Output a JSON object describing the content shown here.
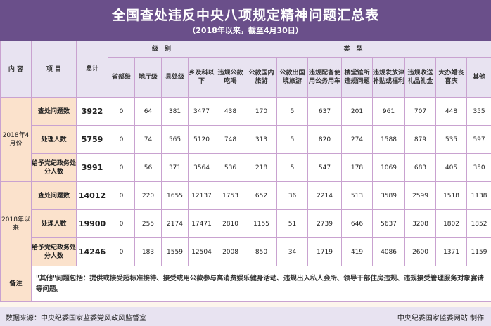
{
  "title": "全国查处违反中央八项规定精神问题汇总表",
  "subtitle": "（2018年以来，截至4月30日）",
  "headers": {
    "content": "内 容",
    "item": "项 目",
    "total": "总计",
    "level": "级　别",
    "type": "类　型",
    "levels": [
      "省部级",
      "地厅级",
      "县处级",
      "乡及科以下"
    ],
    "types": [
      "违规公款吃喝",
      "公款国内旅游",
      "公款出国境旅游",
      "违规配备使用公务用车",
      "楼堂馆所违规问题",
      "违规发放津补贴或福利",
      "违规收送礼品礼金",
      "大办婚丧喜庆",
      "其他"
    ]
  },
  "sections": [
    {
      "name": "2018年4月份",
      "rows": [
        {
          "item": "查处问题数",
          "total": "3922",
          "values": [
            "0",
            "64",
            "381",
            "3477",
            "438",
            "170",
            "5",
            "637",
            "201",
            "961",
            "707",
            "448",
            "355"
          ]
        },
        {
          "item": "处理人数",
          "total": "5759",
          "values": [
            "0",
            "74",
            "565",
            "5120",
            "748",
            "313",
            "5",
            "820",
            "274",
            "1588",
            "879",
            "535",
            "597"
          ]
        },
        {
          "item": "给予党纪政务处分人数",
          "total": "3991",
          "values": [
            "0",
            "56",
            "371",
            "3564",
            "536",
            "218",
            "5",
            "547",
            "178",
            "1069",
            "683",
            "405",
            "350"
          ]
        }
      ]
    },
    {
      "name": "2018年以来",
      "rows": [
        {
          "item": "查处问题数",
          "total": "14012",
          "values": [
            "0",
            "220",
            "1655",
            "12137",
            "1753",
            "652",
            "36",
            "2214",
            "513",
            "3589",
            "2599",
            "1518",
            "1138"
          ]
        },
        {
          "item": "处理人数",
          "total": "19900",
          "values": [
            "0",
            "255",
            "2174",
            "17471",
            "2810",
            "1155",
            "51",
            "2739",
            "646",
            "5637",
            "3208",
            "1802",
            "1852"
          ]
        },
        {
          "item": "给予党纪政务处分人数",
          "total": "14246",
          "values": [
            "0",
            "183",
            "1559",
            "12504",
            "2008",
            "850",
            "34",
            "1719",
            "419",
            "4086",
            "2600",
            "1371",
            "1159"
          ]
        }
      ]
    }
  ],
  "note_label": "备注",
  "note_text": "\"其他\"问题包括：提供或接受超标准接待、接受或用公款参与高消费娱乐健身活动、违规出入私人会所、领导干部住房违规、违规接受管理服务对象宴请等问题。",
  "footer": {
    "source": "数据来源：中央纪委国家监委党风政风监督室",
    "credit": "中央纪委国家监委网站 制作"
  }
}
